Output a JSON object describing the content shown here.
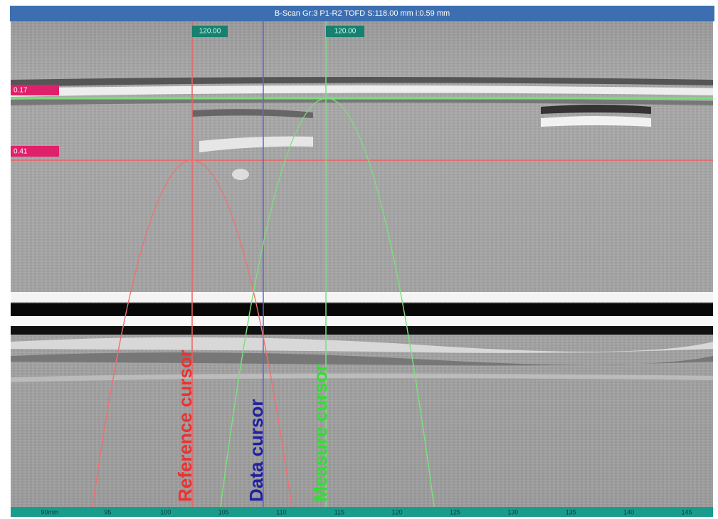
{
  "window": {
    "title": "B-Scan Gr:3 P1-R2 TOFD S:118.00 mm i:0.59 mm"
  },
  "cursors": {
    "reference": "120.00",
    "measure": "120.00"
  },
  "depth_labels": [
    "0.17",
    "0.41"
  ],
  "annotations": {
    "reference": "Reference cursor",
    "data": "Data cursor",
    "measure": "Measure cursor"
  },
  "scale": [
    "90mm",
    "95",
    "100",
    "105",
    "110",
    "115",
    "120",
    "125",
    "130",
    "135",
    "140",
    "145"
  ]
}
